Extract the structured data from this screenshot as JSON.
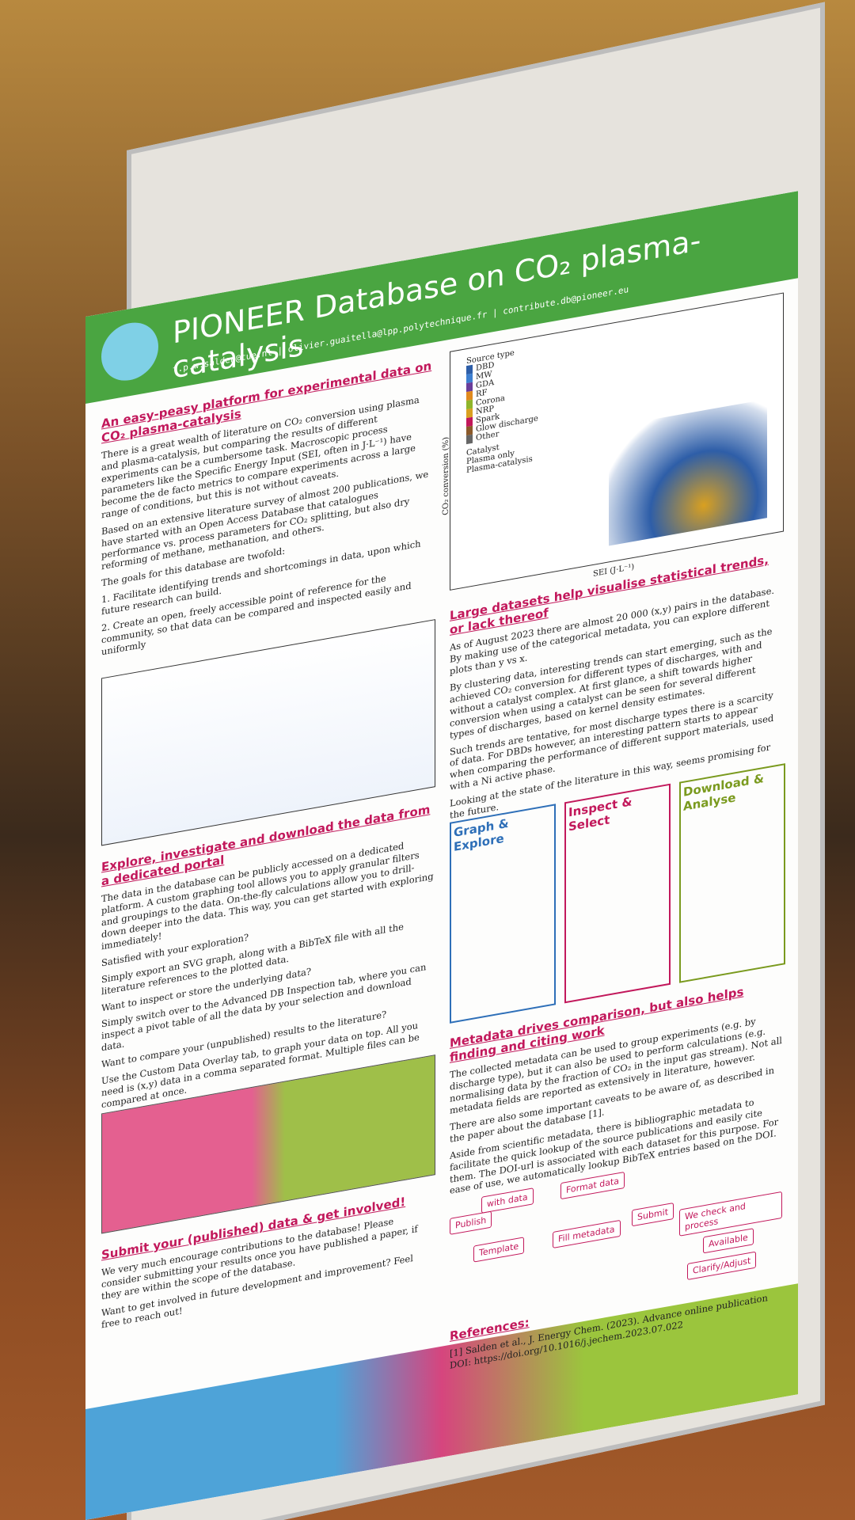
{
  "poster": {
    "title": "PIONEER Database on CO₂ plasma-catalysis",
    "contact": "t.p.w.salden@tue.nl | olivier.guaitella@lpp.polytechnique.fr | contribute.db@pioneer.eu",
    "sections": [
      {
        "heading": "An easy-peasy platform for experimental data on CO₂ plasma-catalysis",
        "paragraphs": [
          "There is a great wealth of literature on CO₂ conversion using plasma and plasma-catalysis, but comparing the results of different experiments can be a cumbersome task. Macroscopic process parameters like the Specific Energy Input (SEI, often in J·L⁻¹) have become the de facto metrics to compare experiments across a large range of conditions, but this is not without caveats.",
          "Based on an extensive literature survey of almost 200 publications, we have started with an Open Access Database that catalogues performance vs. process parameters for CO₂ splitting, but also dry reforming of methane, methanation, and others.",
          "The goals for this database are twofold:",
          "1. Facilitate identifying trends and shortcomings in data, upon which future research can build.",
          "2. Create an open, freely accessible point of reference for the community, so that data can be compared and inspected easily and uniformly"
        ]
      },
      {
        "heading": "Large datasets help visualise statistical trends, or lack thereof",
        "paragraphs": [
          "As of August 2023 there are almost 20 000 (x,y) pairs in the database. By making use of the categorical metadata, you can explore different plots than y vs x.",
          "By clustering data, interesting trends can start emerging, such as the achieved CO₂ conversion for different types of discharges, with and without a catalyst complex. At first glance, a shift towards higher conversion when using a catalyst can be seen for several different types of discharges, based on kernel density estimates.",
          "Such trends are tentative, for most discharge types there is a scarcity of data. For DBDs however, an interesting pattern starts to appear when comparing the performance of different support materials, used with a Ni active phase.",
          "Looking at the state of the literature in this way, seems promising for the future."
        ]
      },
      {
        "heading": "Explore, investigate and download the data from a dedicated portal",
        "paragraphs": [
          "The data in the database can be publicly accessed on a dedicated platform. A custom graphing tool allows you to apply granular filters and groupings to the data. On-the-fly calculations allow you to drill-down deeper into the data. This way, you can get started with exploring immediately!",
          "Satisfied with your exploration?",
          "Simply export an SVG graph, along with a BibTeX file with all the literature references to the plotted data.",
          "Want to inspect or store the underlying data?",
          "Simply switch over to the Advanced DB Inspection tab, where you can inspect a pivot table of all the data by your selection and download data.",
          "Want to compare your (unpublished) results to the literature?",
          "Use the Custom Data Overlay tab, to graph your data on top. All you need is (x,y) data in a comma separated format. Multiple files can be compared at once."
        ]
      },
      {
        "heading": "Metadata drives comparison, but also helps finding and citing work",
        "paragraphs": [
          "The collected metadata can be used to group experiments (e.g. by discharge type), but it can also be used to perform calculations (e.g. normalising data by the fraction of CO₂ in the input gas stream). Not all metadata fields are reported as extensively in literature, however.",
          "There are also some important caveats to be aware of, as described in the paper about the database [1].",
          "Aside from scientific metadata, there is bibliographic metadata to facilitate the quick lookup of the source publications and easily cite them. The DOI-url is associated with each dataset for this purpose. For ease of use, we automatically lookup BibTeX entries based on the DOI."
        ]
      },
      {
        "heading": "Submit your (published) data & get involved!",
        "paragraphs": [
          "We very much encourage contributions to the database! Please consider submitting your results once you have published a paper, if they are within the scope of the database.",
          "Want to get involved in future development and improvement? Feel free to reach out!"
        ]
      },
      {
        "heading": "References:",
        "paragraphs": [
          "[1] Salden et al., J. Energy Chem. (2023). Advance online publication DOI: https://doi.org/10.1016/j.jechem.2023.07.022"
        ]
      }
    ],
    "panels": [
      "Graph & Explore",
      "Inspect & Select",
      "Download & Analyse"
    ],
    "scatter": {
      "legend_title": "Source type",
      "legend": [
        "DBD",
        "MW",
        "GDA",
        "RF",
        "Corona",
        "NRP",
        "Spark",
        "Glow discharge",
        "Other"
      ],
      "catalyst_title": "Catalyst",
      "catalyst": [
        "Plasma only",
        "Plasma-catalysis"
      ],
      "xlabel": "SEI (J·L⁻¹)",
      "ylabel": "CO₂ conversion (%)"
    },
    "flow": [
      "Publish",
      "with data",
      "Format data",
      "Template",
      "Fill metadata",
      "Submit",
      "We check and process",
      "Available",
      "Clarify/Adjust"
    ]
  }
}
